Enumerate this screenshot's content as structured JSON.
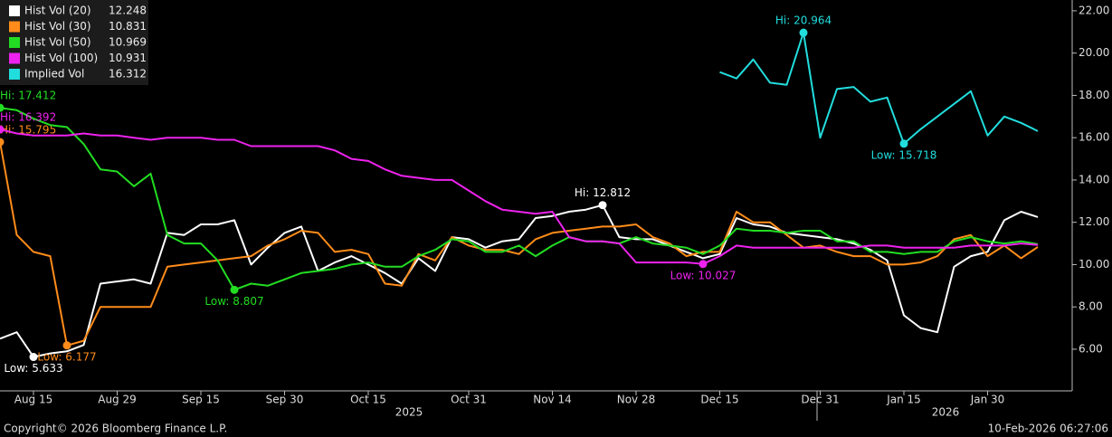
{
  "chart_data": {
    "type": "line",
    "categories": [
      null,
      null,
      "Aug 15",
      null,
      null,
      null,
      null,
      "Aug 29",
      null,
      null,
      null,
      null,
      "Sep 15",
      null,
      null,
      null,
      null,
      "Sep 30",
      null,
      null,
      null,
      null,
      "Oct 15",
      null,
      null,
      null,
      null,
      null,
      "Oct 31",
      null,
      null,
      null,
      null,
      "Nov 14",
      null,
      null,
      null,
      null,
      "Nov 28",
      null,
      null,
      null,
      null,
      "Dec 15",
      null,
      null,
      null,
      null,
      null,
      "Dec 31",
      null,
      null,
      null,
      null,
      "Jan 15",
      null,
      null,
      null,
      null,
      "Jan 30",
      null,
      null,
      null
    ],
    "x_groups": [
      "2025",
      "2026"
    ],
    "ylim": [
      4.03,
      22.51
    ],
    "yticks": [
      {
        "value": 6,
        "label": "6.00"
      },
      {
        "value": 8,
        "label": "8.00"
      },
      {
        "value": 10,
        "label": "10.00"
      },
      {
        "value": 12,
        "label": "12.00"
      },
      {
        "value": 14,
        "label": "14.00"
      },
      {
        "value": 16,
        "label": "16.00"
      },
      {
        "value": 18,
        "label": "18.00"
      },
      {
        "value": 20,
        "label": "20.00"
      },
      {
        "value": 22,
        "label": "22.00"
      }
    ],
    "grid": false,
    "series": [
      {
        "name": "Hist Vol (20)",
        "color": "#ffffff",
        "last": 12.248,
        "high_label": "Hi: 12.812",
        "low_label": "Low: 5.633",
        "values": [
          6.5,
          6.8,
          5.633,
          5.8,
          5.9,
          6.2,
          9.1,
          9.2,
          9.3,
          9.1,
          11.5,
          11.4,
          11.9,
          11.9,
          12.1,
          10.0,
          10.8,
          11.5,
          11.8,
          9.7,
          10.1,
          10.4,
          10.0,
          9.6,
          9.1,
          10.3,
          9.7,
          11.3,
          11.2,
          10.8,
          11.1,
          11.2,
          12.2,
          12.3,
          12.5,
          12.6,
          12.812,
          11.3,
          11.2,
          11.2,
          10.9,
          10.6,
          10.3,
          10.5,
          12.2,
          11.9,
          11.8,
          11.5,
          11.4,
          11.3,
          11.2,
          11.0,
          10.7,
          10.2,
          7.6,
          7.0,
          6.8,
          9.9,
          10.4,
          10.6,
          12.1,
          12.5,
          12.248
        ]
      },
      {
        "name": "Hist Vol (30)",
        "color": "#ff8c1a",
        "last": 10.831,
        "high_label": "Hi: 15.795",
        "low_label": "Low: 6.177",
        "values": [
          15.795,
          11.4,
          10.6,
          10.4,
          6.177,
          6.4,
          8.0,
          8.0,
          8.0,
          8.0,
          9.9,
          10.0,
          10.1,
          10.2,
          10.3,
          10.4,
          10.9,
          11.2,
          11.6,
          11.5,
          10.6,
          10.7,
          10.5,
          9.1,
          9.0,
          10.5,
          10.2,
          11.3,
          10.9,
          10.7,
          10.7,
          10.5,
          11.2,
          11.5,
          11.6,
          11.7,
          11.8,
          11.8,
          11.9,
          11.3,
          11.0,
          10.4,
          10.6,
          10.6,
          12.5,
          12.0,
          12.0,
          11.4,
          10.8,
          10.9,
          10.6,
          10.4,
          10.4,
          10.0,
          10.0,
          10.1,
          10.4,
          11.2,
          11.4,
          10.4,
          10.9,
          10.3,
          10.831
        ]
      },
      {
        "name": "Hist Vol (50)",
        "color": "#22dd22",
        "last": 10.969,
        "high_label": "Hi: 17.412",
        "low_label": "Low: 8.807",
        "values": [
          17.412,
          17.3,
          16.9,
          16.6,
          16.5,
          15.7,
          14.5,
          14.4,
          13.7,
          14.3,
          11.4,
          11.0,
          11.0,
          10.2,
          8.807,
          9.1,
          9.0,
          9.3,
          9.6,
          9.7,
          9.8,
          10.0,
          10.1,
          9.9,
          9.9,
          10.4,
          10.7,
          11.2,
          11.1,
          10.6,
          10.6,
          10.9,
          10.4,
          10.9,
          11.3,
          11.1,
          11.1,
          11.0,
          11.3,
          11.0,
          10.9,
          10.8,
          10.5,
          10.9,
          11.7,
          11.6,
          11.6,
          11.5,
          11.6,
          11.6,
          11.1,
          11.1,
          10.6,
          10.6,
          10.5,
          10.6,
          10.6,
          11.1,
          11.3,
          11.1,
          11.0,
          11.1,
          10.969
        ]
      },
      {
        "name": "Hist Vol (100)",
        "color": "#ee22ee",
        "last": 10.931,
        "high_label": "Hi: 16.392",
        "low_label": "Low: 10.027",
        "values": [
          16.392,
          16.2,
          16.1,
          16.1,
          16.1,
          16.2,
          16.1,
          16.1,
          16.0,
          15.9,
          16.0,
          16.0,
          16.0,
          15.9,
          15.9,
          15.6,
          15.6,
          15.6,
          15.6,
          15.6,
          15.4,
          15.0,
          14.9,
          14.5,
          14.2,
          14.1,
          14.0,
          14.0,
          13.5,
          13.0,
          12.6,
          12.5,
          12.4,
          12.5,
          11.3,
          11.1,
          11.1,
          11.0,
          10.1,
          10.1,
          10.1,
          10.1,
          10.027,
          10.4,
          10.9,
          10.8,
          10.8,
          10.8,
          10.8,
          10.8,
          10.8,
          10.8,
          10.9,
          10.9,
          10.8,
          10.8,
          10.8,
          10.8,
          10.9,
          10.9,
          10.9,
          11.0,
          10.931
        ]
      },
      {
        "name": "Implied Vol",
        "color": "#22dddd",
        "last": 16.312,
        "high_label": "Hi: 20.964",
        "low_label": "Low: 15.718",
        "values": [
          null,
          null,
          null,
          null,
          null,
          null,
          null,
          null,
          null,
          null,
          null,
          null,
          null,
          null,
          null,
          null,
          null,
          null,
          null,
          null,
          null,
          null,
          null,
          null,
          null,
          null,
          null,
          null,
          null,
          null,
          null,
          null,
          null,
          null,
          null,
          null,
          null,
          null,
          null,
          null,
          null,
          null,
          null,
          19.1,
          18.8,
          19.7,
          18.6,
          18.5,
          20.964,
          16.0,
          18.3,
          18.4,
          17.7,
          17.9,
          15.718,
          16.4,
          17.0,
          17.6,
          18.2,
          16.1,
          17.0,
          16.7,
          16.312
        ]
      }
    ]
  },
  "footer": {
    "copyright": "Copyright© 2026 Bloomberg Finance L.P.",
    "timestamp": "10-Feb-2026 06:27:06"
  }
}
